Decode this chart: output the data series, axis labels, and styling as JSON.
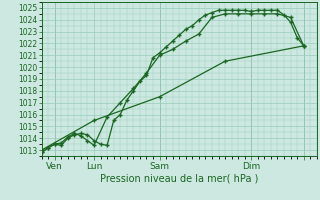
{
  "xlabel": "Pression niveau de la mer( hPa )",
  "background_color": "#cce8e0",
  "grid_color": "#99ccbb",
  "line_color": "#1a6622",
  "ylim": [
    1012.5,
    1025.5
  ],
  "yticks": [
    1013,
    1014,
    1015,
    1016,
    1017,
    1018,
    1019,
    1020,
    1021,
    1022,
    1023,
    1024,
    1025
  ],
  "xlim": [
    0,
    21
  ],
  "xtick_positions": [
    1,
    4,
    9,
    16,
    20
  ],
  "xtick_labels": [
    "Ven",
    "Lun",
    "Sam",
    "Dim",
    ""
  ],
  "line1_x": [
    0,
    0.5,
    1,
    1.5,
    2,
    2.5,
    3,
    3.5,
    4,
    4.5,
    5,
    5.5,
    6,
    6.5,
    7,
    7.5,
    8,
    8.5,
    9,
    9.5,
    10,
    10.5,
    11,
    11.5,
    12,
    12.5,
    13,
    13.5,
    14,
    14.5,
    15,
    15.5,
    16,
    16.5,
    17,
    17.5,
    18,
    18.5,
    19,
    19.5,
    20
  ],
  "line1_y": [
    1012.8,
    1013.2,
    1013.5,
    1013.4,
    1014.0,
    1014.3,
    1014.4,
    1014.3,
    1013.8,
    1013.5,
    1013.4,
    1015.5,
    1016.0,
    1017.2,
    1018.0,
    1018.8,
    1019.3,
    1020.8,
    1021.2,
    1021.7,
    1022.2,
    1022.7,
    1023.2,
    1023.5,
    1024.0,
    1024.4,
    1024.6,
    1024.8,
    1024.8,
    1024.8,
    1024.8,
    1024.8,
    1024.7,
    1024.8,
    1024.8,
    1024.8,
    1024.8,
    1024.4,
    1023.8,
    1022.5,
    1021.8
  ],
  "line2_x": [
    0,
    0.5,
    1,
    1.5,
    2,
    2.5,
    3,
    3.5,
    4,
    5,
    6,
    7,
    8,
    9,
    10,
    11,
    12,
    13,
    14,
    15,
    16,
    17,
    18,
    19,
    20
  ],
  "line2_y": [
    1012.8,
    1013.2,
    1013.5,
    1013.6,
    1014.1,
    1014.4,
    1014.2,
    1013.8,
    1013.4,
    1015.8,
    1017.0,
    1018.2,
    1019.5,
    1021.0,
    1021.5,
    1022.2,
    1022.8,
    1024.2,
    1024.5,
    1024.5,
    1024.5,
    1024.5,
    1024.5,
    1024.2,
    1021.8
  ],
  "line3_x": [
    0,
    4,
    9,
    14,
    20
  ],
  "line3_y": [
    1013.0,
    1015.5,
    1017.5,
    1020.5,
    1021.8
  ],
  "marker": "+",
  "marker_size": 3,
  "linewidth": 0.9
}
